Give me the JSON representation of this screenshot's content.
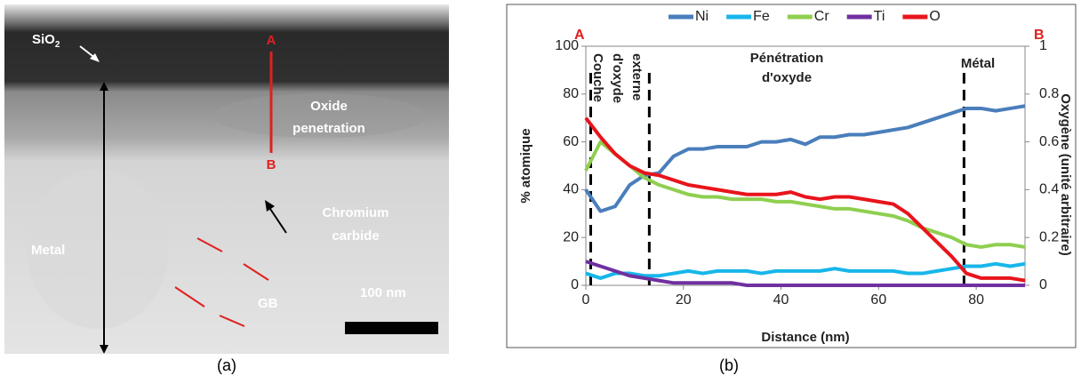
{
  "image_a": {
    "sio2": "SiO",
    "sio2_sub": "2",
    "point_a": "A",
    "point_b": "B",
    "oxide": [
      "Oxide",
      "penetration"
    ],
    "carbide": [
      "Chromium",
      "carbide"
    ],
    "metal": "Metal",
    "gb": "GB",
    "scale": "100 nm"
  },
  "panel_labels": [
    "(a)",
    "(b)"
  ],
  "chart_data": {
    "type": "line",
    "x_label": "Distance (nm)",
    "y_label": "% atomique",
    "y2_label": "Oxygène (unité arbitraire)",
    "x": [
      0,
      3,
      6,
      9,
      12,
      15,
      18,
      21,
      24,
      27,
      30,
      33,
      36,
      39,
      42,
      45,
      48,
      51,
      54,
      57,
      60,
      63,
      66,
      69,
      72,
      75,
      78,
      81,
      84,
      87,
      90
    ],
    "series": [
      {
        "name": "Ni",
        "color": "#4a7ebb",
        "values": [
          40,
          31,
          33,
          42,
          46,
          47,
          54,
          57,
          57,
          58,
          58,
          58,
          60,
          60,
          61,
          59,
          62,
          62,
          63,
          63,
          64,
          65,
          66,
          68,
          70,
          72,
          74,
          74,
          73,
          74,
          75
        ]
      },
      {
        "name": "Fe",
        "color": "#17b6ea",
        "values": [
          5,
          3,
          5,
          5,
          4,
          4,
          5,
          6,
          5,
          6,
          6,
          6,
          5,
          6,
          6,
          6,
          6,
          7,
          6,
          6,
          6,
          6,
          5,
          5,
          6,
          7,
          8,
          8,
          9,
          8,
          9
        ]
      },
      {
        "name": "Cr",
        "color": "#8fcf4f",
        "values": [
          48,
          60,
          55,
          50,
          45,
          42,
          40,
          38,
          37,
          37,
          36,
          36,
          36,
          35,
          35,
          34,
          33,
          32,
          32,
          31,
          30,
          29,
          27,
          24,
          22,
          20,
          17,
          16,
          17,
          17,
          16
        ]
      },
      {
        "name": "Ti",
        "color": "#7030a0",
        "values": [
          10,
          8,
          6,
          4,
          3,
          2,
          1,
          1,
          1,
          1,
          1,
          0,
          0,
          0,
          0,
          0,
          0,
          0,
          0,
          0,
          0,
          0,
          0,
          0,
          0,
          0,
          0,
          0,
          0,
          0,
          0
        ]
      },
      {
        "name": "O",
        "color": "#e8141c",
        "axis": "y2",
        "values": [
          0.7,
          0.62,
          0.55,
          0.5,
          0.47,
          0.46,
          0.44,
          0.42,
          0.41,
          0.4,
          0.39,
          0.38,
          0.38,
          0.38,
          0.39,
          0.37,
          0.36,
          0.37,
          0.37,
          0.36,
          0.35,
          0.34,
          0.3,
          0.24,
          0.18,
          0.12,
          0.05,
          0.03,
          0.03,
          0.03,
          0.02
        ]
      }
    ],
    "xlim": [
      0,
      90
    ],
    "xticks": [
      0,
      20,
      40,
      60,
      80
    ],
    "ylim": [
      0,
      100
    ],
    "yticks": [
      0,
      20,
      40,
      60,
      80,
      100
    ],
    "y2lim": [
      0,
      1
    ],
    "y2ticks": [
      0,
      0.2,
      0.4,
      0.6,
      0.8,
      1
    ],
    "legend": "top",
    "boundaries": [
      1,
      13,
      77.5
    ],
    "annotations": {
      "left_mark": "A",
      "right_mark": "B",
      "zone1": [
        "Couche",
        "d'oxyde",
        "externe"
      ],
      "zone2": [
        "Pénétration",
        "d'oxyde"
      ],
      "zone3": "Métal"
    }
  }
}
